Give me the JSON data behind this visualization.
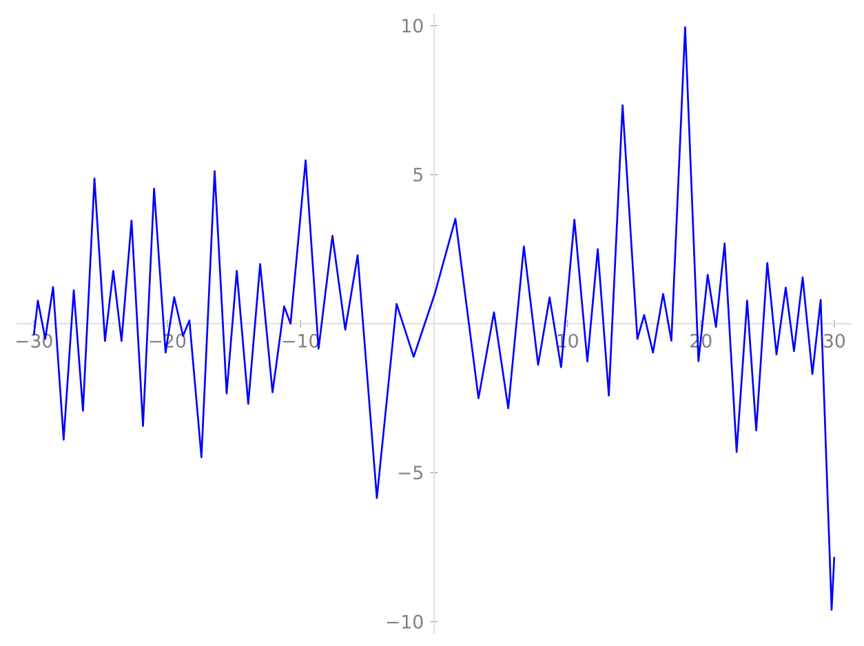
{
  "chart_data": {
    "type": "line",
    "color": "#0000ff",
    "x": [
      -30.0,
      -29.7,
      -29.15,
      -28.56,
      -27.77,
      -27.01,
      -26.32,
      -25.46,
      -24.67,
      -24.05,
      -23.43,
      -22.68,
      -21.82,
      -20.99,
      -20.13,
      -19.48,
      -18.82,
      -18.34,
      -17.44,
      -16.45,
      -15.55,
      -14.79,
      -13.93,
      -13.04,
      -12.11,
      -11.24,
      -10.76,
      -9.63,
      -8.66,
      -7.62,
      -6.66,
      -5.73,
      -4.29,
      -2.81,
      -1.53,
      0.05,
      1.6,
      3.33,
      4.49,
      5.56,
      6.73,
      7.8,
      8.66,
      9.52,
      10.52,
      11.49,
      12.27,
      13.1,
      14.13,
      15.24,
      15.75,
      16.41,
      17.17,
      17.79,
      18.82,
      19.82,
      20.51,
      21.13,
      21.78,
      22.68,
      23.47,
      24.15,
      24.98,
      25.67,
      26.36,
      26.98,
      27.63,
      28.36,
      28.98,
      29.8,
      30.0
    ],
    "values": [
      -0.38,
      0.77,
      -0.51,
      1.23,
      -3.89,
      1.12,
      -2.92,
      4.87,
      -0.58,
      1.77,
      -0.58,
      3.46,
      -3.43,
      4.53,
      -0.97,
      0.89,
      -0.41,
      0.11,
      -4.48,
      5.12,
      -2.34,
      1.77,
      -2.69,
      2.0,
      -2.3,
      0.58,
      0.0,
      5.48,
      -0.84,
      2.95,
      -0.2,
      2.3,
      -5.85,
      0.66,
      -1.11,
      1.0,
      3.52,
      -2.5,
      0.38,
      -2.84,
      2.59,
      -1.38,
      0.88,
      -1.46,
      3.49,
      -1.27,
      2.5,
      -2.41,
      7.33,
      -0.51,
      0.29,
      -0.97,
      1.0,
      -0.57,
      9.95,
      -1.26,
      1.64,
      -0.11,
      2.69,
      -4.3,
      0.77,
      -3.58,
      2.04,
      -1.03,
      1.21,
      -0.92,
      1.55,
      -1.69,
      0.8,
      -9.6,
      -7.83
    ],
    "xlim": [
      -31.3,
      31.3
    ],
    "ylim": [
      -10.4,
      10.4
    ],
    "xticks": [
      {
        "value": -30,
        "label": "−30"
      },
      {
        "value": -20,
        "label": "−20"
      },
      {
        "value": -10,
        "label": "−10"
      },
      10,
      20,
      30
    ],
    "yticks": [
      {
        "value": -10,
        "label": "−10"
      },
      {
        "value": -5,
        "label": "−5"
      },
      5,
      10
    ]
  }
}
